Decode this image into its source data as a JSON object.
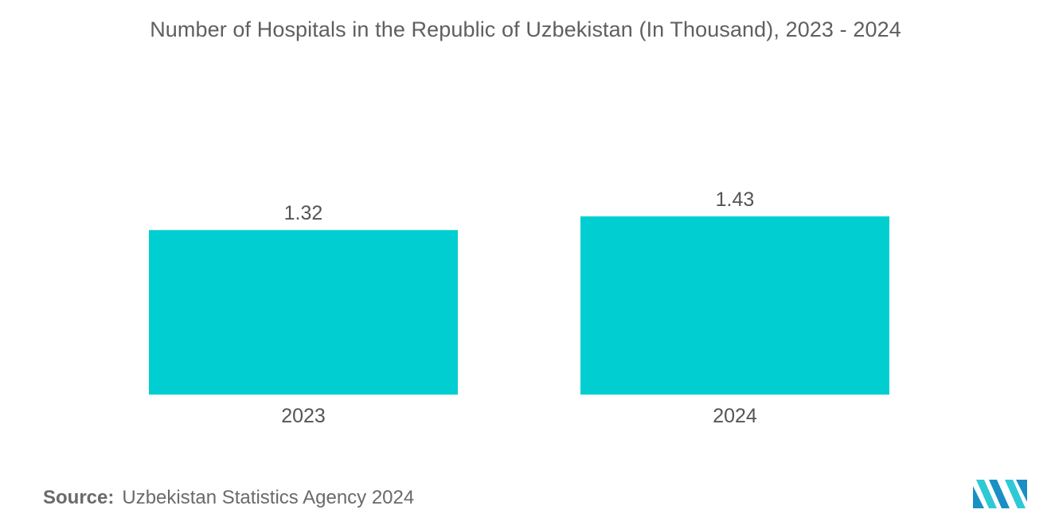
{
  "chart_data": {
    "type": "bar",
    "title": "Number of Hospitals in the Republic of Uzbekistan (In Thousand), 2023 - 2024",
    "categories": [
      "2023",
      "2024"
    ],
    "values": [
      1.32,
      1.43
    ],
    "value_labels": [
      "1.32",
      "1.43"
    ],
    "xlabel": "",
    "ylabel": "",
    "ylim": [
      0,
      1.43
    ],
    "grid": false,
    "legend": "none",
    "bar_color": "#00CED1"
  },
  "source": {
    "label": "Source:",
    "text": "Uzbekistan Statistics Agency 2024"
  },
  "logo": {
    "icon": "mordor-intelligence-logo-icon",
    "colors": [
      "#1a8fc4",
      "#2fc9d6"
    ]
  }
}
